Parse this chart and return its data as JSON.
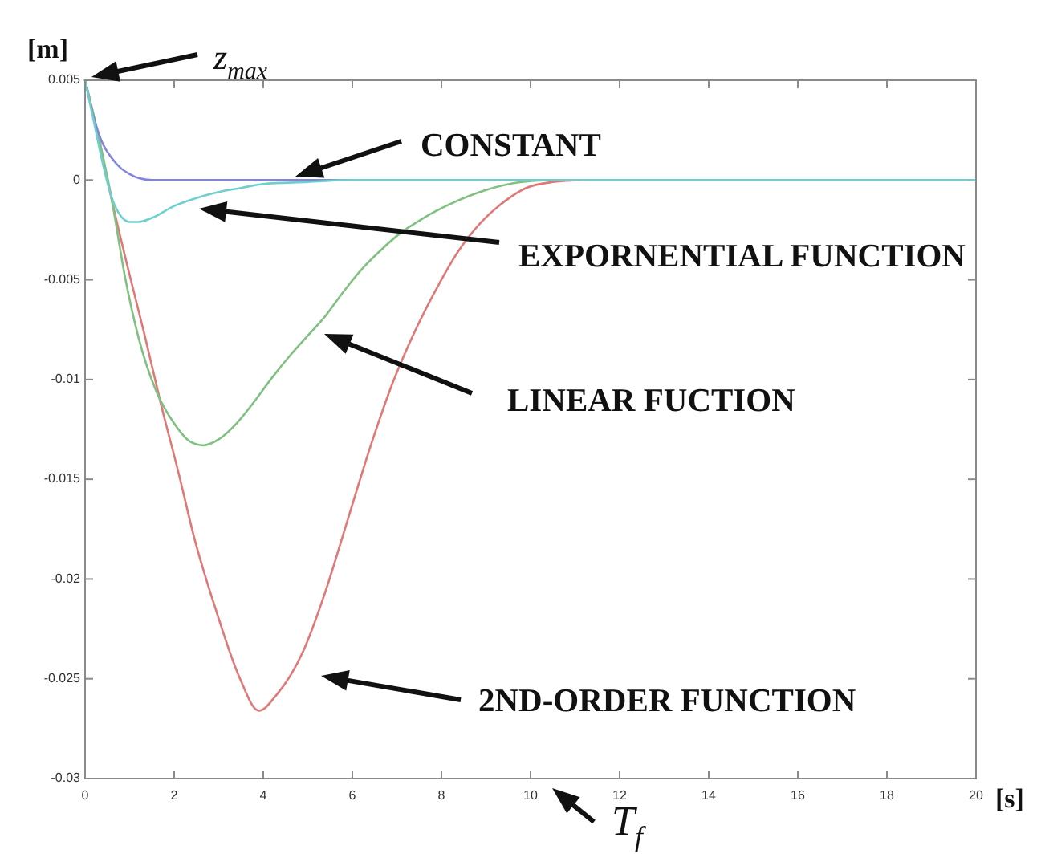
{
  "chart_data": {
    "type": "line",
    "xlabel": "[s]",
    "ylabel": "[m]",
    "xlim": [
      0,
      20
    ],
    "ylim": [
      -0.03,
      0.005
    ],
    "xticks": [
      0,
      2,
      4,
      6,
      8,
      10,
      12,
      14,
      16,
      18,
      20
    ],
    "yticks": [
      0.005,
      0,
      -0.005,
      -0.01,
      -0.015,
      -0.02,
      -0.025,
      -0.03
    ],
    "series": [
      {
        "color": "#e07878",
        "x": [
          0,
          0.3,
          0.6,
          0.96,
          1.34,
          1.71,
          2.09,
          2.47,
          2.93,
          3.46,
          3.9,
          4.3,
          4.9,
          5.4,
          5.9,
          6.4,
          6.9,
          7.4,
          7.9,
          8.4,
          8.9,
          9.4,
          9.9,
          10.5,
          11.2
        ],
        "values": [
          0.005,
          0.0022,
          -0.001,
          -0.0044,
          -0.0078,
          -0.0113,
          -0.0146,
          -0.0181,
          -0.0215,
          -0.0249,
          -0.0266,
          -0.0258,
          -0.0236,
          -0.0206,
          -0.017,
          -0.0134,
          -0.0102,
          -0.0076,
          -0.0054,
          -0.0035,
          -0.0021,
          -0.0011,
          -0.0004,
          -0.0001,
          0
        ]
      },
      {
        "color": "#80c080",
        "x": [
          0,
          0.3,
          0.6,
          0.9,
          1.2,
          1.6,
          2.0,
          2.35,
          2.65,
          3.0,
          3.4,
          3.8,
          4.2,
          4.6,
          5.0,
          5.4,
          5.8,
          6.2,
          6.6,
          7.0,
          7.6,
          8.2,
          9.0,
          9.8,
          10.5
        ],
        "values": [
          0.005,
          0.0022,
          -0.001,
          -0.0049,
          -0.0079,
          -0.0106,
          -0.0122,
          -0.0131,
          -0.0133,
          -0.013,
          -0.0122,
          -0.0111,
          -0.0099,
          -0.0088,
          -0.0078,
          -0.0068,
          -0.0056,
          -0.0045,
          -0.0036,
          -0.0028,
          -0.0019,
          -0.0012,
          -0.0005,
          -0.0001,
          0
        ]
      },
      {
        "color": "#8282e0",
        "x": [
          0,
          0.2,
          0.4,
          0.6,
          0.8,
          1.0,
          1.2,
          1.5,
          6
        ],
        "values": [
          0.005,
          0.0031,
          0.0018,
          0.0011,
          0.0006,
          0.0003,
          0.0001,
          0,
          0
        ]
      },
      {
        "color": "#6fcfcf",
        "x": [
          0,
          0.2,
          0.4,
          0.6,
          0.8,
          1.0,
          1.2,
          1.5,
          2.0,
          2.5,
          3.0,
          3.5,
          4.0,
          5.0,
          6.0,
          20
        ],
        "values": [
          0.005,
          0.0029,
          0.0008,
          -0.0009,
          -0.0018,
          -0.0021,
          -0.0021,
          -0.0019,
          -0.0013,
          -0.0009,
          -0.0006,
          -0.0004,
          -0.0002,
          -0.0001,
          0,
          0
        ]
      }
    ],
    "annotations": [
      "z$_{max}$",
      "CONSTANT",
      "EXPORNENTIAL FUNCTION",
      "LINEAR FUCTION",
      "2ND-ORDER FUNCTION",
      "T$_{f}$"
    ]
  }
}
